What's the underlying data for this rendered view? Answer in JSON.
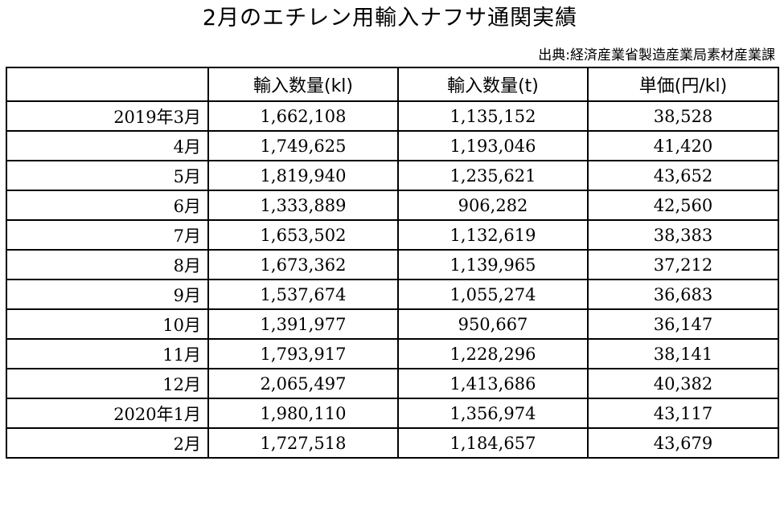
{
  "title": "2月のエチレン用輸入ナフサ通関実績",
  "source": "出典:経済産業省製造産業局素材産業課",
  "table": {
    "headers": [
      "",
      "輸入数量(kl)",
      "輸入数量(t)",
      "単価(円/kl)"
    ],
    "rows": [
      {
        "label": "2019年3月",
        "kl": "1,662,108",
        "t": "1,135,152",
        "price": "38,528"
      },
      {
        "label": "4月",
        "kl": "1,749,625",
        "t": "1,193,046",
        "price": "41,420"
      },
      {
        "label": "5月",
        "kl": "1,819,940",
        "t": "1,235,621",
        "price": "43,652"
      },
      {
        "label": "6月",
        "kl": "1,333,889",
        "t": "906,282",
        "price": "42,560"
      },
      {
        "label": "7月",
        "kl": "1,653,502",
        "t": "1,132,619",
        "price": "38,383"
      },
      {
        "label": "8月",
        "kl": "1,673,362",
        "t": "1,139,965",
        "price": "37,212"
      },
      {
        "label": "9月",
        "kl": "1,537,674",
        "t": "1,055,274",
        "price": "36,683"
      },
      {
        "label": "10月",
        "kl": "1,391,977",
        "t": "950,667",
        "price": "36,147"
      },
      {
        "label": "11月",
        "kl": "1,793,917",
        "t": "1,228,296",
        "price": "38,141"
      },
      {
        "label": "12月",
        "kl": "2,065,497",
        "t": "1,413,686",
        "price": "40,382"
      },
      {
        "label": "2020年1月",
        "kl": "1,980,110",
        "t": "1,356,974",
        "price": "43,117"
      },
      {
        "label": "2月",
        "kl": "1,727,518",
        "t": "1,184,657",
        "price": "43,679"
      }
    ]
  }
}
